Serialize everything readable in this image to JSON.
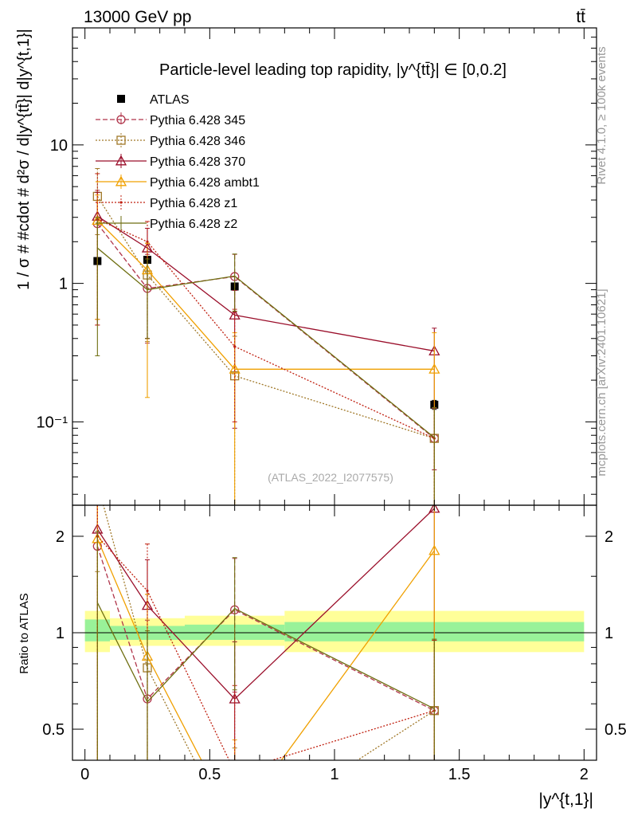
{
  "header": {
    "left": "13000 GeV pp",
    "right": "tt̄"
  },
  "side_labels": {
    "rivet": "Rivet 4.1.0, ≥ 100k events",
    "mcplots": "mcplots.cern.ch [arXiv:2401.10621]"
  },
  "colors": {
    "ATLAS": "#000000",
    "p345": "#b0344a",
    "p346": "#a07828",
    "p370": "#9a0e2a",
    "ambt1": "#f0a000",
    "z1": "#c02010",
    "z2": "#6e6e10",
    "band_inner": "#99f299",
    "band_outer": "#ffff99"
  },
  "chart_data": [
    {
      "type": "line",
      "title": "Particle-level leading top rapidity, |y^{tt̄}| ∈ [0,0.2]",
      "watermark": "(ATLAS_2022_I2077575)",
      "ylabel": "1 / σ # #cdot # d²σ / d|y^{tt̄}| d|y^{t,1}|",
      "yscale": "log",
      "ylim": [
        0.025,
        70
      ],
      "xlim": [
        -0.05,
        2.05
      ],
      "yticks": [
        {
          "value": 0.1,
          "label": "10⁻¹"
        },
        {
          "value": 1,
          "label": "1"
        },
        {
          "value": 10,
          "label": "10"
        }
      ],
      "x": [
        0.05,
        0.25,
        0.6,
        1.4
      ],
      "bin_edges": [
        0,
        0.1,
        0.4,
        0.8,
        2.0
      ],
      "series": [
        {
          "name": "ATLAS",
          "marker": "square",
          "line": "none",
          "values": [
            1.45,
            1.48,
            0.95,
            0.133
          ],
          "err": [
            0.05,
            0.05,
            0.04,
            0.01
          ]
        },
        {
          "name": "Pythia 6.428 345",
          "marker": "circle",
          "line": "dashed",
          "values": [
            2.7,
            0.92,
            1.12,
            0.076
          ],
          "err_up": [
            2.0,
            0.7,
            0.5,
            0.05
          ],
          "err_dn": [
            2.2,
            0.55,
            0.5,
            0.07
          ]
        },
        {
          "name": "Pythia 6.428 346",
          "marker": "square-open",
          "line": "dotted",
          "values": [
            4.25,
            1.15,
            0.215,
            0.076
          ],
          "err_up": [
            2.5,
            0.8,
            0.2,
            0.05
          ],
          "err_dn": [
            2.0,
            0.77,
            0.2,
            0.07
          ]
        },
        {
          "name": "Pythia 6.428 370",
          "marker": "triangle",
          "line": "solid",
          "values": [
            3.05,
            1.8,
            0.59,
            0.325
          ],
          "err_up": [
            1.5,
            0.7,
            0.3,
            0.15
          ],
          "err_dn": [
            2.5,
            1.4,
            0.5,
            0.28
          ]
        },
        {
          "name": "Pythia 6.428 ambt1",
          "marker": "triangle",
          "line": "solid",
          "values": [
            2.85,
            1.25,
            0.24,
            0.24
          ],
          "err_up": [
            1.5,
            0.7,
            0.2,
            0.2
          ],
          "err_dn": [
            2.3,
            1.1,
            0.23,
            0.23
          ]
        },
        {
          "name": "Pythia 6.428 z1",
          "marker": "dot",
          "line": "dotted",
          "values": [
            2.9,
            2.0,
            0.35,
            0.076
          ],
          "err_up": [
            3.3,
            0.8,
            0.3,
            0.05
          ],
          "err_dn": [
            2.4,
            1.6,
            0.25,
            0.07
          ]
        },
        {
          "name": "Pythia 6.428 z2",
          "marker": "none",
          "line": "solid",
          "values": [
            1.8,
            0.9,
            1.13,
            0.077
          ],
          "err_up": [
            1.2,
            0.6,
            0.5,
            0.05
          ],
          "err_dn": [
            1.5,
            0.5,
            0.5,
            0.07
          ]
        }
      ]
    },
    {
      "type": "line",
      "ylabel": "Ratio to ATLAS",
      "xlabel": "|y^{t,1}|",
      "yscale": "log",
      "ylim": [
        0.4,
        2.5
      ],
      "xlim": [
        -0.05,
        2.05
      ],
      "yticks": [
        {
          "value": 0.5,
          "label": "0.5"
        },
        {
          "value": 1,
          "label": "1"
        },
        {
          "value": 2,
          "label": "2"
        }
      ],
      "xticks": [
        {
          "value": 0,
          "label": "0"
        },
        {
          "value": 0.5,
          "label": "0.5"
        },
        {
          "value": 1,
          "label": "1"
        },
        {
          "value": 1.5,
          "label": "1.5"
        },
        {
          "value": 2,
          "label": "2"
        }
      ],
      "bands": [
        {
          "from": 0,
          "to": 0.1,
          "inner": [
            0.94,
            1.1
          ],
          "outer": [
            0.87,
            1.17
          ]
        },
        {
          "from": 0.1,
          "to": 0.4,
          "inner": [
            0.95,
            1.05
          ],
          "outer": [
            0.91,
            1.11
          ]
        },
        {
          "from": 0.4,
          "to": 0.8,
          "inner": [
            0.95,
            1.06
          ],
          "outer": [
            0.91,
            1.13
          ]
        },
        {
          "from": 0.8,
          "to": 2.0,
          "inner": [
            0.94,
            1.08
          ],
          "outer": [
            0.87,
            1.17
          ]
        }
      ]
    }
  ]
}
